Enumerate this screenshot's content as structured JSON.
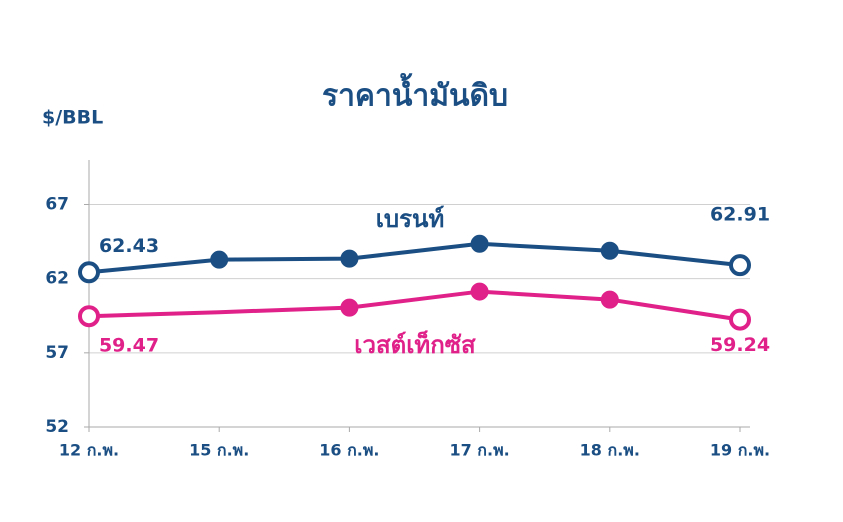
{
  "chart_data": {
    "type": "line",
    "title": "ราคาน้ำมันดิบ",
    "y_label": "$/BBL",
    "categories": [
      "12 ก.พ.",
      "15 ก.พ.",
      "16 ก.พ.",
      "17 ก.พ.",
      "18 ก.พ.",
      "19 ก.พ."
    ],
    "series": [
      {
        "name": "เบรนท์",
        "color": "#1b4f84",
        "values": [
          62.43,
          63.28,
          63.35,
          64.35,
          63.88,
          62.91
        ],
        "value_labels": [
          "62.43",
          null,
          null,
          null,
          null,
          "62.91"
        ]
      },
      {
        "name": "เวสต์เท็กซัส",
        "color": "#e0218a",
        "values": [
          59.47,
          59.74,
          60.05,
          61.13,
          60.59,
          59.24
        ],
        "value_labels": [
          "59.47",
          null,
          null,
          null,
          null,
          "59.24"
        ]
      }
    ],
    "ylim": [
      52,
      70
    ],
    "yticks": [
      52,
      57,
      62,
      67
    ],
    "grid": true
  }
}
